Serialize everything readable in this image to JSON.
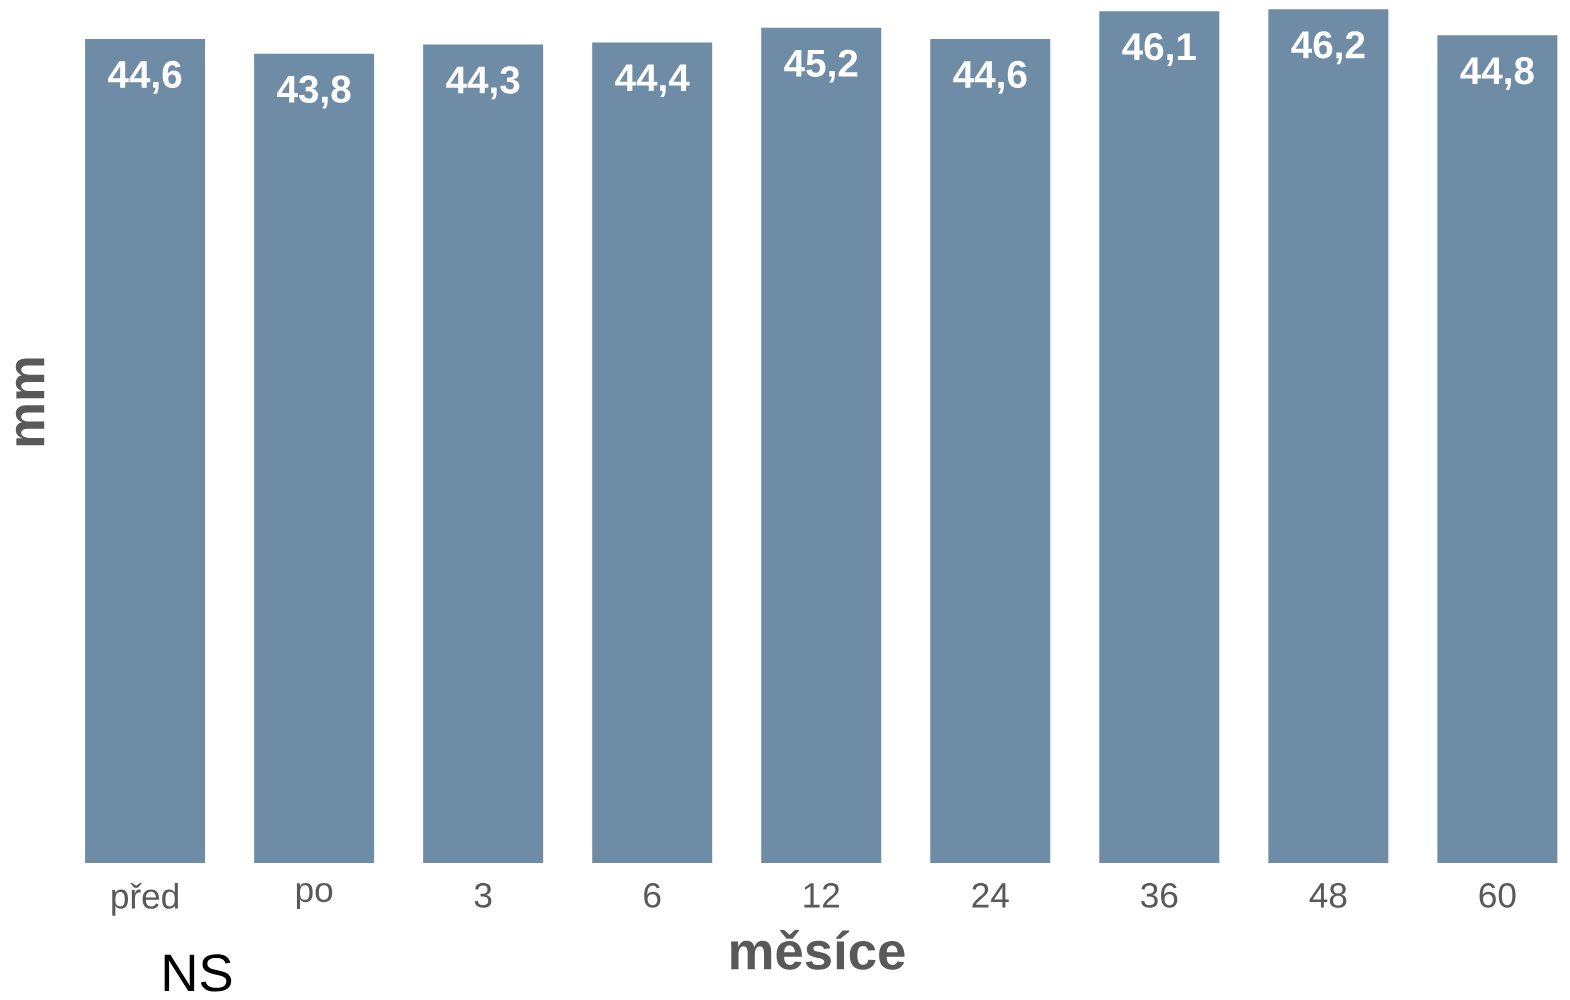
{
  "chart_data": {
    "type": "bar",
    "categories": [
      "před",
      "po",
      "3",
      "6",
      "12",
      "24",
      "36",
      "48",
      "60"
    ],
    "values": [
      44.6,
      43.8,
      44.3,
      44.4,
      45.2,
      44.6,
      46.1,
      46.2,
      44.8
    ],
    "value_labels": [
      "44,6",
      "43,8",
      "44,3",
      "44,4",
      "45,2",
      "44,6",
      "46,1",
      "46,2",
      "44,8"
    ],
    "color": "#6f8ca6",
    "xlabel": "měsíce",
    "ylabel": "mm",
    "annotations": [
      "NS"
    ]
  }
}
